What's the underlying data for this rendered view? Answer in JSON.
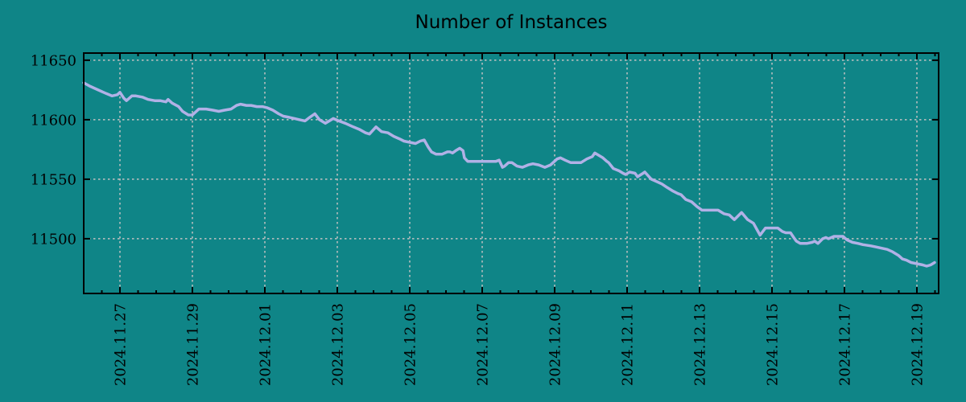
{
  "chart_data": {
    "type": "line",
    "title": "Number of Instances",
    "xlabel": "",
    "ylabel": "",
    "grid": true,
    "legend": "none",
    "x_axis": {
      "tick_labels": [
        "2024.11.27",
        "2024.11.29",
        "2024.12.01",
        "2024.12.03",
        "2024.12.05",
        "2024.12.07",
        "2024.12.09",
        "2024.12.11",
        "2024.12.13",
        "2024.12.15",
        "2024.12.17",
        "2024.12.19"
      ],
      "tick_day_offsets": [
        0,
        2,
        4,
        6,
        8,
        10,
        12,
        14,
        16,
        18,
        20,
        22
      ],
      "minor_tick_step_days": 0.5,
      "xlim_day_offsets": [
        -1.0,
        22.6
      ],
      "labels_rotated_degrees": -90
    },
    "y_axis": {
      "tick_labels": [
        "11500",
        "11550",
        "11600",
        "11650"
      ],
      "tick_values": [
        11500,
        11550,
        11600,
        11650
      ],
      "ylim": [
        11454,
        11656
      ]
    },
    "colors": {
      "background": "#0f8587",
      "line": "#b1b1e6",
      "grid": "#c2c2c2",
      "axis": "#000000",
      "text": "#000000"
    },
    "series": [
      {
        "points": [
          [
            -1.0,
            11631
          ],
          [
            -0.82,
            11628
          ],
          [
            -0.6,
            11625
          ],
          [
            -0.38,
            11622
          ],
          [
            -0.22,
            11620
          ],
          [
            -0.07,
            11621
          ],
          [
            0.0,
            11623
          ],
          [
            0.11,
            11618
          ],
          [
            0.18,
            11616
          ],
          [
            0.33,
            11620
          ],
          [
            0.44,
            11620
          ],
          [
            0.62,
            11619
          ],
          [
            0.78,
            11617
          ],
          [
            0.96,
            11616
          ],
          [
            1.11,
            11616
          ],
          [
            1.27,
            11615
          ],
          [
            1.33,
            11617
          ],
          [
            1.44,
            11614
          ],
          [
            1.62,
            11611
          ],
          [
            1.73,
            11607
          ],
          [
            1.89,
            11604
          ],
          [
            2.0,
            11604
          ],
          [
            2.18,
            11609
          ],
          [
            2.38,
            11609
          ],
          [
            2.56,
            11608
          ],
          [
            2.73,
            11607
          ],
          [
            2.89,
            11608
          ],
          [
            3.07,
            11609
          ],
          [
            3.22,
            11612
          ],
          [
            3.33,
            11613
          ],
          [
            3.49,
            11612
          ],
          [
            3.62,
            11612
          ],
          [
            3.78,
            11611
          ],
          [
            3.93,
            11611
          ],
          [
            4.07,
            11610
          ],
          [
            4.22,
            11608
          ],
          [
            4.38,
            11605
          ],
          [
            4.51,
            11603
          ],
          [
            4.67,
            11602
          ],
          [
            4.82,
            11601
          ],
          [
            4.96,
            11600
          ],
          [
            5.11,
            11599
          ],
          [
            5.24,
            11602
          ],
          [
            5.38,
            11605
          ],
          [
            5.51,
            11600
          ],
          [
            5.67,
            11597
          ],
          [
            5.78,
            11599
          ],
          [
            5.89,
            11601
          ],
          [
            6.04,
            11599
          ],
          [
            6.22,
            11597
          ],
          [
            6.44,
            11594
          ],
          [
            6.6,
            11592
          ],
          [
            6.78,
            11589
          ],
          [
            6.89,
            11588
          ],
          [
            7.07,
            11594
          ],
          [
            7.22,
            11590
          ],
          [
            7.4,
            11589
          ],
          [
            7.56,
            11586
          ],
          [
            7.71,
            11584
          ],
          [
            7.84,
            11582
          ],
          [
            8.0,
            11581
          ],
          [
            8.16,
            11580
          ],
          [
            8.29,
            11582
          ],
          [
            8.4,
            11583
          ],
          [
            8.51,
            11577
          ],
          [
            8.6,
            11573
          ],
          [
            8.73,
            11571
          ],
          [
            8.89,
            11571
          ],
          [
            9.04,
            11573
          ],
          [
            9.11,
            11573
          ],
          [
            9.18,
            11572
          ],
          [
            9.27,
            11574
          ],
          [
            9.38,
            11576
          ],
          [
            9.47,
            11574
          ],
          [
            9.51,
            11568
          ],
          [
            9.6,
            11565
          ],
          [
            9.78,
            11565
          ],
          [
            10.0,
            11565
          ],
          [
            10.22,
            11565
          ],
          [
            10.38,
            11565
          ],
          [
            10.47,
            11566
          ],
          [
            10.56,
            11560
          ],
          [
            10.62,
            11561
          ],
          [
            10.73,
            11564
          ],
          [
            10.82,
            11564
          ],
          [
            10.96,
            11561
          ],
          [
            11.11,
            11560
          ],
          [
            11.27,
            11562
          ],
          [
            11.4,
            11563
          ],
          [
            11.56,
            11562
          ],
          [
            11.73,
            11560
          ],
          [
            11.89,
            11562
          ],
          [
            12.07,
            11567
          ],
          [
            12.16,
            11568
          ],
          [
            12.29,
            11566
          ],
          [
            12.44,
            11564
          ],
          [
            12.6,
            11564
          ],
          [
            12.73,
            11564
          ],
          [
            12.89,
            11567
          ],
          [
            13.04,
            11569
          ],
          [
            13.11,
            11572
          ],
          [
            13.22,
            11570
          ],
          [
            13.33,
            11568
          ],
          [
            13.44,
            11565
          ],
          [
            13.49,
            11564
          ],
          [
            13.62,
            11559
          ],
          [
            13.78,
            11557
          ],
          [
            13.89,
            11555
          ],
          [
            13.96,
            11554
          ],
          [
            14.07,
            11556
          ],
          [
            14.22,
            11555
          ],
          [
            14.29,
            11552
          ],
          [
            14.44,
            11555
          ],
          [
            14.49,
            11556
          ],
          [
            14.67,
            11550
          ],
          [
            14.82,
            11548
          ],
          [
            14.96,
            11546
          ],
          [
            15.11,
            11543
          ],
          [
            15.27,
            11540
          ],
          [
            15.4,
            11538
          ],
          [
            15.49,
            11537
          ],
          [
            15.62,
            11533
          ],
          [
            15.78,
            11531
          ],
          [
            15.93,
            11527
          ],
          [
            16.07,
            11524
          ],
          [
            16.22,
            11524
          ],
          [
            16.51,
            11524
          ],
          [
            16.67,
            11521
          ],
          [
            16.82,
            11520
          ],
          [
            16.96,
            11516
          ],
          [
            17.16,
            11522
          ],
          [
            17.33,
            11516
          ],
          [
            17.49,
            11513
          ],
          [
            17.58,
            11508
          ],
          [
            17.67,
            11503
          ],
          [
            17.82,
            11509
          ],
          [
            18.0,
            11509
          ],
          [
            18.16,
            11509
          ],
          [
            18.29,
            11506
          ],
          [
            18.38,
            11505
          ],
          [
            18.51,
            11505
          ],
          [
            18.6,
            11501
          ],
          [
            18.67,
            11498
          ],
          [
            18.78,
            11496
          ],
          [
            18.96,
            11496
          ],
          [
            19.11,
            11497
          ],
          [
            19.18,
            11498
          ],
          [
            19.27,
            11496
          ],
          [
            19.4,
            11500
          ],
          [
            19.49,
            11501
          ],
          [
            19.56,
            11500
          ],
          [
            19.71,
            11502
          ],
          [
            19.84,
            11502
          ],
          [
            19.96,
            11502
          ],
          [
            20.07,
            11499
          ],
          [
            20.22,
            11497
          ],
          [
            20.38,
            11496
          ],
          [
            20.51,
            11495
          ],
          [
            20.73,
            11494
          ],
          [
            20.89,
            11493
          ],
          [
            21.04,
            11492
          ],
          [
            21.18,
            11491
          ],
          [
            21.33,
            11489
          ],
          [
            21.49,
            11486
          ],
          [
            21.6,
            11483
          ],
          [
            21.71,
            11482
          ],
          [
            21.84,
            11480
          ],
          [
            22.0,
            11479
          ],
          [
            22.16,
            11478
          ],
          [
            22.27,
            11477
          ],
          [
            22.38,
            11478
          ],
          [
            22.49,
            11480
          ]
        ]
      }
    ]
  }
}
